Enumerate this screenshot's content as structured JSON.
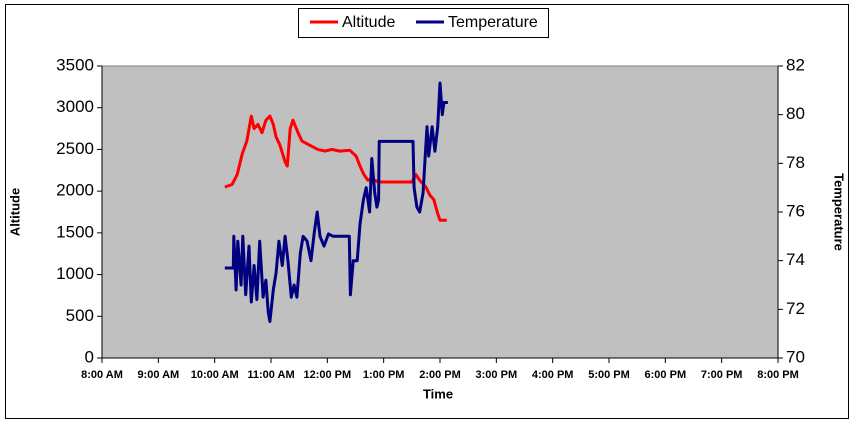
{
  "chart_data": {
    "type": "line",
    "xlabel": "Time",
    "ylabel": "Altitude",
    "y2label": "Temperature",
    "xlim": [
      8,
      20
    ],
    "xticks": [
      {
        "value": 8,
        "label": "8:00 AM"
      },
      {
        "value": 9,
        "label": "9:00 AM"
      },
      {
        "value": 10,
        "label": "10:00 AM"
      },
      {
        "value": 11,
        "label": "11:00 AM"
      },
      {
        "value": 12,
        "label": "12:00 PM"
      },
      {
        "value": 13,
        "label": "1:00 PM"
      },
      {
        "value": 14,
        "label": "2:00 PM"
      },
      {
        "value": 15,
        "label": "3:00 PM"
      },
      {
        "value": 16,
        "label": "4:00 PM"
      },
      {
        "value": 17,
        "label": "5:00 PM"
      },
      {
        "value": 18,
        "label": "6:00 PM"
      },
      {
        "value": 19,
        "label": "7:00 PM"
      },
      {
        "value": 20,
        "label": "8:00 PM"
      }
    ],
    "ylim": [
      0,
      3500
    ],
    "yticks": [
      0,
      500,
      1000,
      1500,
      2000,
      2500,
      3000,
      3500
    ],
    "y2lim": [
      70,
      82
    ],
    "y2ticks": [
      70,
      72,
      74,
      76,
      78,
      80,
      82
    ],
    "grid": false,
    "legend": "top",
    "series": [
      {
        "name": "Altitude",
        "color": "#ff0000",
        "x": [
          10.18,
          10.31,
          10.4,
          10.49,
          10.57,
          10.65,
          10.7,
          10.77,
          10.84,
          10.91,
          10.98,
          11.04,
          11.09,
          11.16,
          11.25,
          11.29,
          11.34,
          11.39,
          11.48,
          11.55,
          11.69,
          11.83,
          11.96,
          12.08,
          12.22,
          12.4,
          12.51,
          12.58,
          12.65,
          12.72,
          12.79,
          12.9,
          13.5,
          13.57,
          13.65,
          13.75,
          13.82,
          13.89,
          13.95,
          14.0,
          14.12
        ],
        "values": [
          2050,
          2080,
          2200,
          2450,
          2600,
          2900,
          2750,
          2800,
          2700,
          2850,
          2900,
          2800,
          2650,
          2550,
          2350,
          2300,
          2750,
          2850,
          2700,
          2600,
          2550,
          2500,
          2480,
          2500,
          2480,
          2490,
          2420,
          2300,
          2200,
          2130,
          2150,
          2110,
          2110,
          2200,
          2120,
          2050,
          1950,
          1900,
          1750,
          1650,
          1650
        ]
      },
      {
        "name": "Temperature",
        "color": "#000080",
        "axis": "y2",
        "x": [
          10.18,
          10.33,
          10.34,
          10.38,
          10.41,
          10.47,
          10.5,
          10.55,
          10.61,
          10.65,
          10.7,
          10.75,
          10.8,
          10.86,
          10.91,
          10.95,
          10.98,
          11.04,
          11.09,
          11.14,
          11.2,
          11.25,
          11.3,
          11.36,
          11.41,
          11.46,
          11.52,
          11.57,
          11.64,
          11.71,
          11.77,
          11.82,
          11.87,
          11.94,
          12.02,
          12.1,
          12.39,
          12.41,
          12.46,
          12.53,
          12.58,
          12.64,
          12.69,
          12.75,
          12.79,
          12.84,
          12.88,
          12.91,
          12.92,
          13.52,
          13.54,
          13.59,
          13.64,
          13.7,
          13.73,
          13.77,
          13.8,
          13.86,
          13.91,
          13.96,
          14.0,
          14.04,
          14.07,
          14.14
        ],
        "values": [
          73.7,
          73.7,
          75.0,
          72.8,
          74.8,
          73.0,
          75.0,
          72.6,
          74.6,
          72.3,
          73.8,
          72.4,
          74.8,
          72.5,
          73.2,
          71.9,
          71.5,
          72.8,
          73.5,
          74.8,
          73.8,
          75.0,
          74.0,
          72.5,
          73.0,
          72.5,
          74.3,
          75.0,
          74.8,
          74.0,
          75.2,
          76.0,
          75.0,
          74.6,
          75.1,
          75.0,
          75.0,
          72.6,
          74.0,
          74.0,
          75.5,
          76.5,
          77.0,
          76.0,
          78.2,
          76.8,
          76.2,
          76.5,
          78.9,
          78.9,
          77.0,
          76.2,
          76.0,
          76.8,
          78.0,
          79.5,
          78.3,
          79.5,
          78.5,
          79.5,
          81.3,
          80.0,
          80.5,
          80.5
        ]
      }
    ]
  }
}
